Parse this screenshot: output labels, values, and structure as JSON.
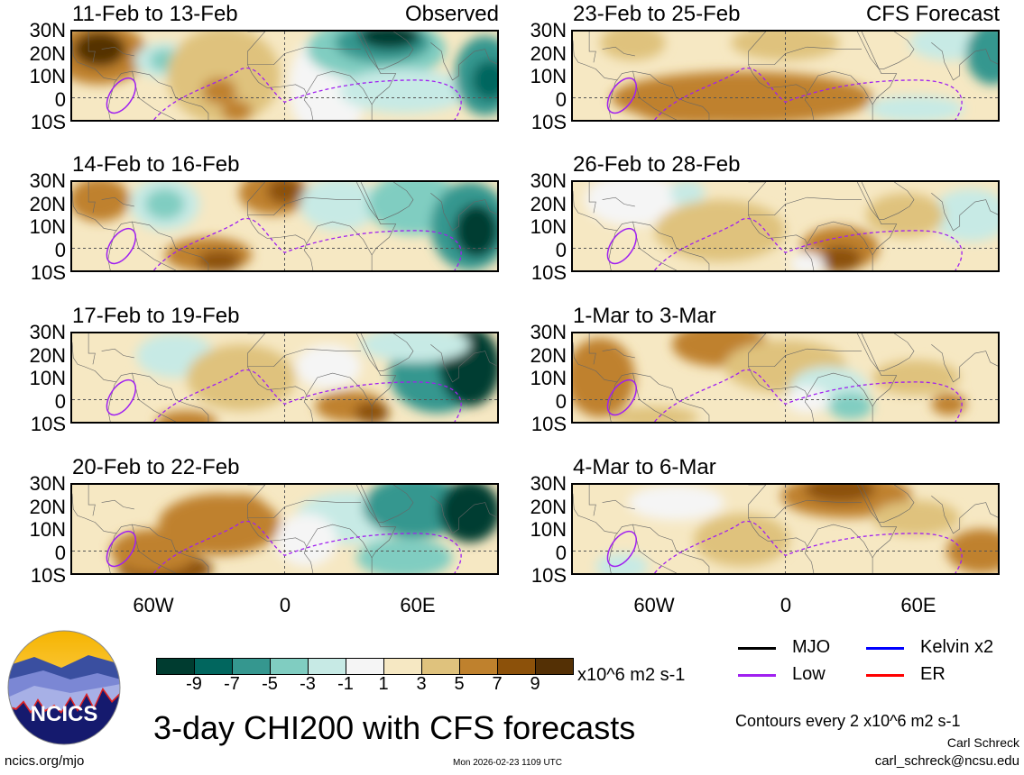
{
  "panels": [
    {
      "title": "11-Feb to 13-Feb",
      "label": "Observed"
    },
    {
      "title": "14-Feb to 16-Feb",
      "label": ""
    },
    {
      "title": "17-Feb to 19-Feb",
      "label": ""
    },
    {
      "title": "20-Feb to 22-Feb",
      "label": ""
    },
    {
      "title": "23-Feb to 25-Feb",
      "label": "CFS Forecast"
    },
    {
      "title": "26-Feb to 28-Feb",
      "label": ""
    },
    {
      "title": "1-Mar to 3-Mar",
      "label": ""
    },
    {
      "title": "4-Mar to 6-Mar",
      "label": ""
    }
  ],
  "lat_ticks": [
    "30N",
    "20N",
    "10N",
    "0",
    "10S"
  ],
  "lon_ticks": [
    "60W",
    "0",
    "60E"
  ],
  "colorbar": {
    "colors": [
      "#003c30",
      "#01665e",
      "#35978f",
      "#80cdc1",
      "#c7eae5",
      "#f5f5f5",
      "#f6e8c3",
      "#dfc27d",
      "#bf812d",
      "#8c510a",
      "#543005"
    ],
    "ticks": [
      "-9",
      "-7",
      "-5",
      "-3",
      "-1",
      "1",
      "3",
      "5",
      "7",
      "9"
    ],
    "units": "x10^6 m2 s-1"
  },
  "legend": [
    {
      "label": "MJO",
      "color": "#000000"
    },
    {
      "label": "Kelvin x2",
      "color": "#0000ff"
    },
    {
      "label": "Low",
      "color": "#a020f0"
    },
    {
      "label": "ER",
      "color": "#ff0000"
    }
  ],
  "title": "3-day CHI200 with CFS forecasts",
  "contours_note": "Contours every 2 x10^6 m2 s-1",
  "author": "Carl Schreck",
  "email": "carl_schreck@ncsu.edu",
  "website": "ncics.org/mjo",
  "timestamp": "Mon 2026-02-23 1109 UTC",
  "logo_text": "NCICS"
}
